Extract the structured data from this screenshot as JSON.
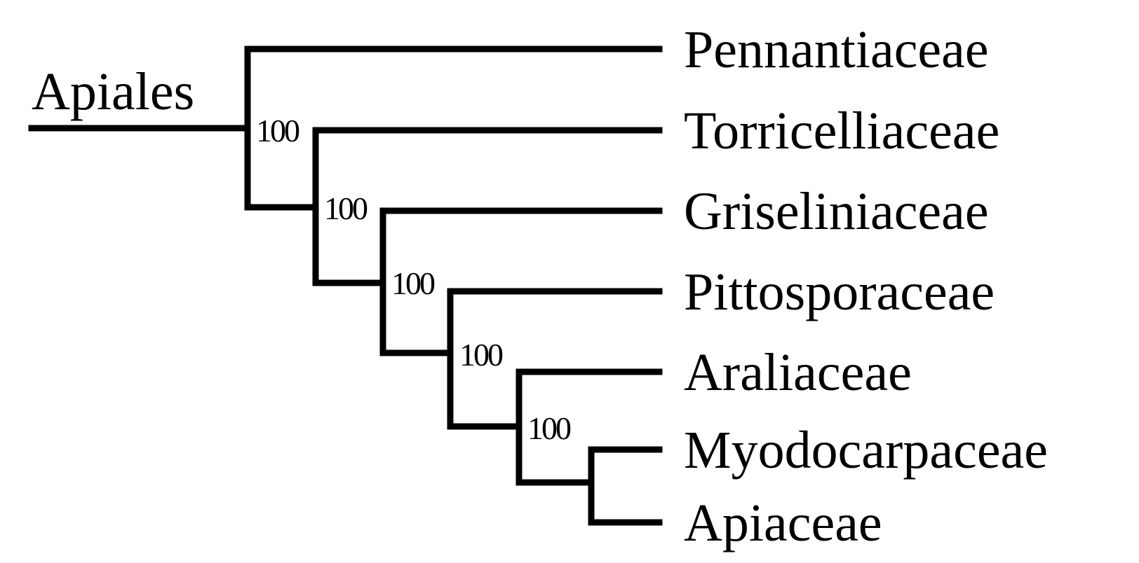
{
  "clade_label": "Apiales",
  "taxa": [
    "Pennantiaceae",
    "Torricelliaceae",
    "Griseliniaceae",
    "Pittosporaceae",
    "Araliaceae",
    "Myodocarpaceae",
    "Apiaceae"
  ],
  "support_values": [
    "100",
    "100",
    "100",
    "100",
    "100"
  ],
  "colors": {
    "line": "#000000",
    "text": "#000000",
    "background": "#ffffff"
  }
}
